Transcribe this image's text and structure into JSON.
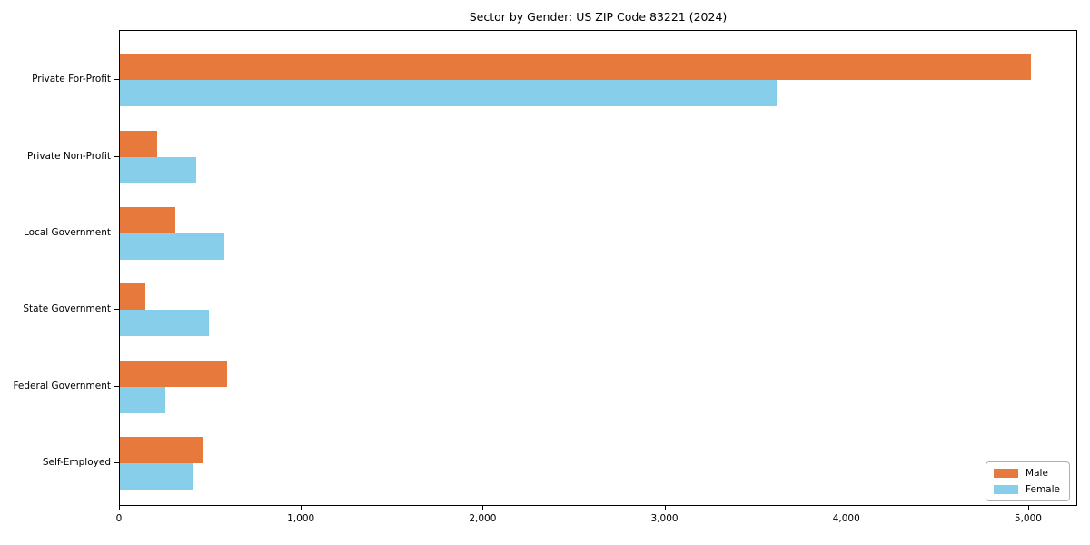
{
  "chart_data": {
    "type": "bar",
    "orientation": "horizontal",
    "title": "Sector by Gender: US ZIP Code 83221 (2024)",
    "categories": [
      "Private For-Profit",
      "Private Non-Profit",
      "Local Government",
      "State Government",
      "Federal Government",
      "Self-Employed"
    ],
    "series": [
      {
        "name": "Male",
        "color": "#E8793D",
        "values": [
          5010,
          205,
          305,
          140,
          590,
          455
        ]
      },
      {
        "name": "Female",
        "color": "#87CEEB",
        "values": [
          3610,
          420,
          575,
          490,
          250,
          400
        ]
      }
    ],
    "xlabel": "",
    "ylabel": "",
    "xlim": [
      0,
      5260
    ],
    "x_ticks": [
      0,
      1000,
      2000,
      3000,
      4000,
      5000
    ],
    "x_tick_labels": [
      "0",
      "1,000",
      "2,000",
      "3,000",
      "4,000",
      "5,000"
    ],
    "grid": false,
    "legend_position": "lower right",
    "axis_color": "#000000",
    "background_color": "#ffffff"
  }
}
